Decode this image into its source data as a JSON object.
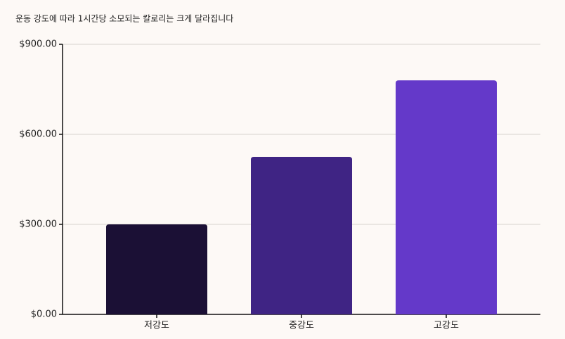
{
  "chart_data": {
    "type": "bar",
    "title": "운동 강도에 따라 1시간당 소모되는 칼로리는 크게 달라집니다",
    "categories": [
      "저강도",
      "중강도",
      "고강도"
    ],
    "values": [
      300,
      525,
      780
    ],
    "colors": [
      "#1b1035",
      "#3f2484",
      "#6439c9"
    ],
    "ylim": [
      0,
      900
    ],
    "yticks": [
      {
        "value": 0,
        "label": "$0.00"
      },
      {
        "value": 300,
        "label": "$300.00"
      },
      {
        "value": 600,
        "label": "$600.00"
      },
      {
        "value": 900,
        "label": "$900.00"
      }
    ],
    "grid": true
  }
}
